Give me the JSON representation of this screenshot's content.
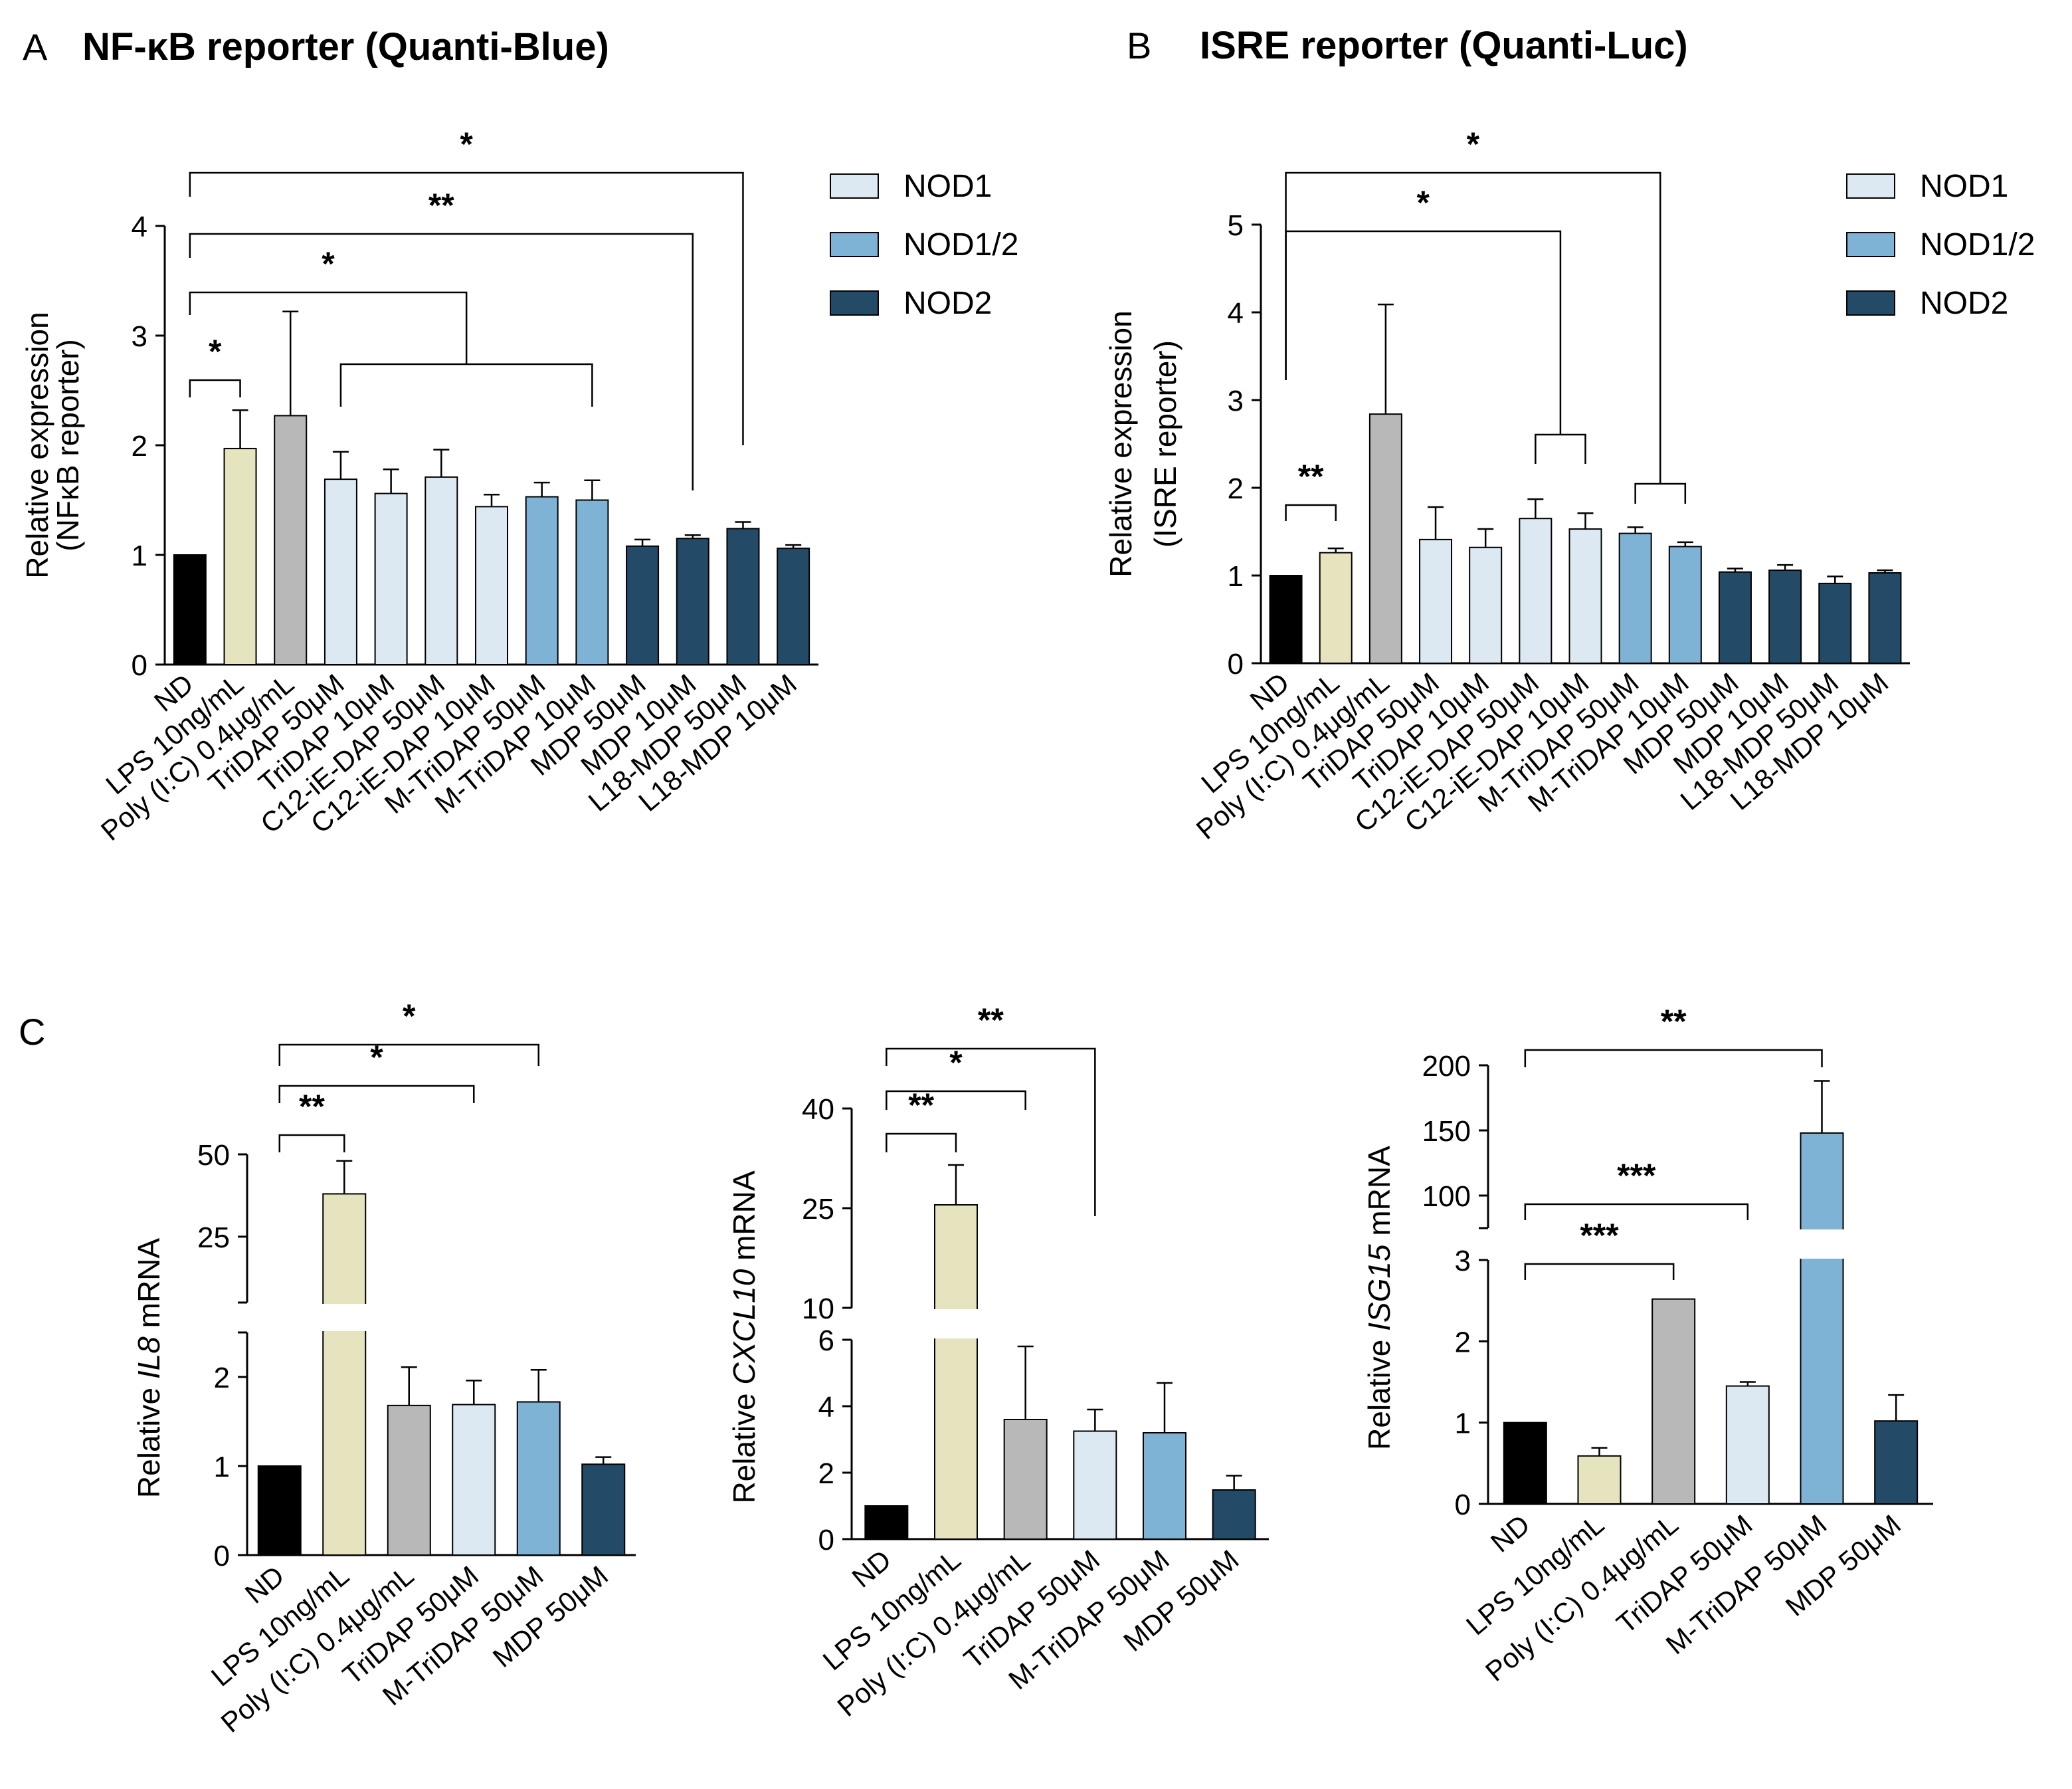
{
  "colors": {
    "ND": "#000000",
    "LPS": "#e6e4bf",
    "PIC": "#b8b8b8",
    "NOD1": "#dce9f2",
    "NOD12": "#7eb3d6",
    "NOD2": "#234a66"
  },
  "legend": [
    {
      "label": "NOD1",
      "color": "#dce9f2"
    },
    {
      "label": "NOD1/2",
      "color": "#7eb3d6"
    },
    {
      "label": "NOD2",
      "color": "#234a66"
    }
  ],
  "chart_data": [
    {
      "id": "A",
      "type": "bar",
      "panel_letter": "A",
      "title": "NF-κB reporter (Quanti-Blue)",
      "ylabel_lines": [
        "Relative expression",
        "(NFκB reporter)"
      ],
      "yticks": [
        "0",
        "1",
        "2",
        "3",
        "4"
      ],
      "ylim": [
        0,
        4
      ],
      "categories": [
        "ND",
        "LPS 10ng/mL",
        "Poly (I:C) 0.4μg/mL",
        "TriDAP 50μM",
        "TriDAP 10μM",
        "C12-iE-DAP 50μM",
        "C12-iE-DAP 10μM",
        "M-TriDAP 50μM",
        "M-TriDAP 10μM",
        "MDP 50μM",
        "MDP 10μM",
        "L18-MDP 50μM",
        "L18-MDP 10μM"
      ],
      "groups": [
        "ND",
        "LPS",
        "PIC",
        "NOD1",
        "NOD1",
        "NOD1",
        "NOD1",
        "NOD12",
        "NOD12",
        "NOD2",
        "NOD2",
        "NOD2",
        "NOD2"
      ],
      "values": [
        1.0,
        1.97,
        2.27,
        1.69,
        1.56,
        1.71,
        1.44,
        1.53,
        1.5,
        1.08,
        1.15,
        1.24,
        1.06
      ],
      "errors": [
        0,
        0.35,
        0.95,
        0.25,
        0.22,
        0.25,
        0.11,
        0.13,
        0.18,
        0.06,
        0.03,
        0.06,
        0.03
      ],
      "significance": [
        {
          "label": "*",
          "from": 0,
          "to": 11
        },
        {
          "label": "**",
          "from": 0,
          "to": 10
        },
        {
          "label": "*",
          "from": 0,
          "to": [
            3,
            8
          ]
        },
        {
          "label": "*",
          "from": 0,
          "to": 1
        }
      ]
    },
    {
      "id": "B",
      "type": "bar",
      "panel_letter": "B",
      "title": "ISRE reporter (Quanti-Luc)",
      "ylabel_lines": [
        "Relative expression",
        "(ISRE reporter)"
      ],
      "yticks": [
        "0",
        "1",
        "2",
        "3",
        "4",
        "5"
      ],
      "ylim": [
        0,
        5
      ],
      "categories": [
        "ND",
        "LPS 10ng/mL",
        "Poly (I:C) 0.4μg/mL",
        "TriDAP 50μM",
        "TriDAP 10μM",
        "C12-iE-DAP 50μM",
        "C12-iE-DAP 10μM",
        "M-TriDAP 50μM",
        "M-TriDAP 10μM",
        "MDP 50μM",
        "MDP 10μM",
        "L18-MDP 50μM",
        "L18-MDP 10μM"
      ],
      "groups": [
        "ND",
        "LPS",
        "PIC",
        "NOD1",
        "NOD1",
        "NOD1",
        "NOD1",
        "NOD12",
        "NOD12",
        "NOD2",
        "NOD2",
        "NOD2",
        "NOD2"
      ],
      "values": [
        1.0,
        1.26,
        2.84,
        1.41,
        1.32,
        1.65,
        1.53,
        1.48,
        1.33,
        1.04,
        1.06,
        0.91,
        1.03
      ],
      "errors": [
        0,
        0.05,
        1.25,
        0.37,
        0.21,
        0.22,
        0.18,
        0.07,
        0.05,
        0.04,
        0.06,
        0.08,
        0.03
      ],
      "significance": [
        {
          "label": "*",
          "from": 0,
          "to": [
            7,
            8
          ]
        },
        {
          "label": "*",
          "from": 0,
          "to": [
            5,
            6
          ]
        },
        {
          "label": "**",
          "from": 0,
          "to": 1
        }
      ]
    },
    {
      "id": "C1",
      "type": "bar",
      "panel_letter": "C",
      "ylabel_pre": "Relative ",
      "ylabel_gene": "IL8",
      "ylabel_post": " mRNA",
      "broken_axis": true,
      "lower_ticks": [
        "0",
        "1",
        "2"
      ],
      "lower_range": [
        0,
        2.5
      ],
      "upper_ticks": [
        "25",
        "50"
      ],
      "upper_range": [
        5,
        50
      ],
      "categories": [
        "ND",
        "LPS 10ng/mL",
        "Poly (I:C) 0.4μg/mL",
        "TriDAP 50μM",
        "M-TriDAP 50μM",
        "MDP 50μM"
      ],
      "groups": [
        "ND",
        "LPS",
        "PIC",
        "NOD1",
        "NOD12",
        "NOD2"
      ],
      "values": [
        1.0,
        38,
        1.68,
        1.69,
        1.72,
        1.02
      ],
      "errors": [
        0,
        10,
        0.43,
        0.27,
        0.36,
        0.08
      ],
      "significance": [
        {
          "label": "*",
          "from": 0,
          "to": 4
        },
        {
          "label": "*",
          "from": 0,
          "to": 3
        },
        {
          "label": "**",
          "from": 0,
          "to": 1
        }
      ]
    },
    {
      "id": "C2",
      "type": "bar",
      "ylabel_pre": "Relative ",
      "ylabel_gene": "CXCL10",
      "ylabel_post": " mRNA",
      "broken_axis": true,
      "lower_ticks": [
        "0",
        "2",
        "4",
        "6"
      ],
      "lower_range": [
        0,
        6
      ],
      "upper_ticks": [
        "10",
        "25",
        "40"
      ],
      "upper_range": [
        10,
        40
      ],
      "categories": [
        "ND",
        "LPS 10ng/mL",
        "Poly (I:C) 0.4μg/mL",
        "TriDAP 50μM",
        "M-TriDAP 50μM",
        "MDP 50μM"
      ],
      "groups": [
        "ND",
        "LPS",
        "PIC",
        "NOD1",
        "NOD12",
        "NOD2"
      ],
      "values": [
        1.0,
        25.5,
        3.6,
        3.25,
        3.2,
        1.48
      ],
      "errors": [
        0,
        6,
        2.2,
        0.65,
        1.5,
        0.43
      ],
      "significance": [
        {
          "label": "**",
          "from": 0,
          "to": 3
        },
        {
          "label": "*",
          "from": 0,
          "to": 2
        },
        {
          "label": "**",
          "from": 0,
          "to": 1
        }
      ]
    },
    {
      "id": "C3",
      "type": "bar",
      "ylabel_pre": "Relative ",
      "ylabel_gene": "ISG15",
      "ylabel_post": " mRNA",
      "broken_axis": true,
      "lower_ticks": [
        "0",
        "1",
        "2",
        "3"
      ],
      "lower_range": [
        0,
        3
      ],
      "upper_ticks": [
        "100",
        "150",
        "200"
      ],
      "upper_range": [
        75,
        200
      ],
      "categories": [
        "ND",
        "LPS 10ng/mL",
        "Poly (I:C) 0.4μg/mL",
        "TriDAP 50μM",
        "M-TriDAP 50μM",
        "MDP 50μM"
      ],
      "groups": [
        "ND",
        "LPS",
        "PIC",
        "NOD1",
        "NOD12",
        "NOD2"
      ],
      "values": [
        1.0,
        0.59,
        2.52,
        1.45,
        148,
        1.02
      ],
      "errors": [
        0,
        0.1,
        0,
        0.05,
        40,
        0.32
      ],
      "significance": [
        {
          "label": "**",
          "from": 0,
          "to": 4
        },
        {
          "label": "***",
          "from": 0,
          "to": 3
        },
        {
          "label": "***",
          "from": 0,
          "to": 2
        }
      ]
    }
  ]
}
